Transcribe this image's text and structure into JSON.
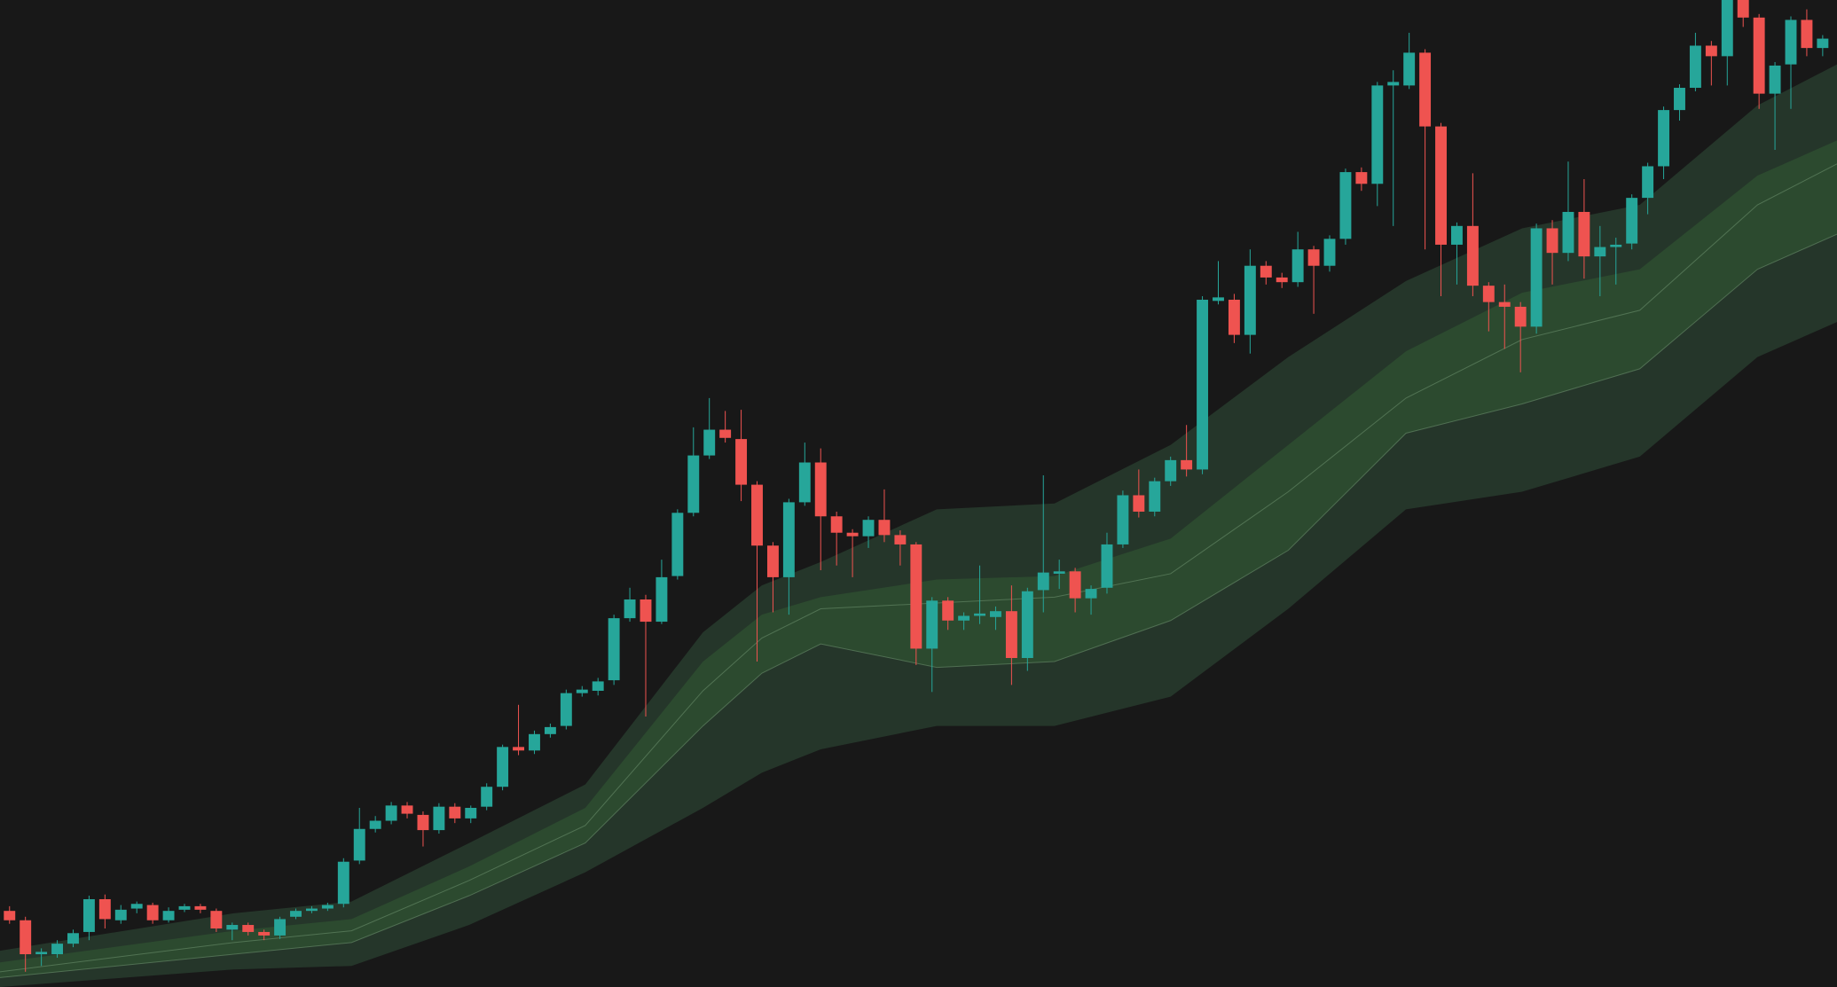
{
  "chart_data": {
    "type": "candlestick",
    "up_color": "#26a69a",
    "down_color": "#ef5350",
    "xlim": [
      -0.6,
      114.9
    ],
    "ylim": [
      0,
      843
    ],
    "x": [
      0,
      1,
      2,
      3,
      4,
      5,
      6,
      7,
      8,
      9,
      10,
      11,
      12,
      13,
      14,
      15,
      16,
      17,
      18,
      19,
      20,
      21,
      22,
      23,
      24,
      25,
      26,
      27,
      28,
      29,
      30,
      31,
      32,
      33,
      34,
      35,
      36,
      37,
      38,
      39,
      40,
      41,
      42,
      43,
      44,
      45,
      46,
      47,
      48,
      49,
      50,
      51,
      52,
      53,
      54,
      55,
      56,
      57,
      58,
      59,
      60,
      61,
      62,
      63,
      64,
      65,
      66,
      67,
      68,
      69,
      70,
      71,
      72,
      73,
      74,
      75,
      76,
      77,
      78,
      79,
      80,
      81,
      82,
      83,
      84,
      85,
      86,
      87,
      88,
      89,
      90,
      91,
      92,
      93,
      94,
      95,
      96,
      97,
      98,
      99,
      100,
      101,
      102,
      103,
      104,
      105,
      106,
      107,
      108,
      109,
      110,
      111,
      112,
      113,
      114
    ],
    "open": [
      65,
      57,
      28,
      28,
      37,
      47,
      75,
      57,
      67,
      70,
      57,
      66,
      69,
      65,
      49,
      53,
      47,
      44,
      60,
      65,
      67,
      71,
      108,
      135,
      142,
      155,
      147,
      134,
      154,
      144,
      154,
      171,
      205,
      202,
      216,
      223,
      251,
      253,
      262,
      315,
      331,
      312,
      351,
      405,
      454,
      476,
      468,
      429,
      377,
      350,
      414,
      448,
      402,
      388,
      385,
      399,
      386,
      378,
      289,
      330,
      313,
      317,
      316,
      321,
      281,
      339,
      353,
      355,
      332,
      341,
      378,
      420,
      406,
      432,
      450,
      442,
      586,
      587,
      557,
      616,
      606,
      602,
      630,
      616,
      639,
      696,
      686,
      770,
      770,
      798,
      735,
      634,
      650,
      599,
      585,
      581,
      564,
      648,
      627,
      662,
      624,
      632,
      635,
      674,
      701,
      749,
      768,
      804,
      795,
      843,
      828,
      763,
      788,
      826,
      802
    ],
    "high": [
      69,
      60,
      33,
      40,
      49,
      78,
      79,
      70,
      73,
      72,
      68,
      71,
      71,
      67,
      55,
      55,
      49,
      60,
      67,
      69,
      72,
      110,
      153,
      146,
      158,
      158,
      150,
      157,
      157,
      155,
      174,
      207,
      241,
      219,
      225,
      254,
      257,
      264,
      318,
      341,
      335,
      365,
      408,
      478,
      503,
      492,
      493,
      432,
      380,
      417,
      465,
      460,
      406,
      391,
      402,
      425,
      390,
      380,
      333,
      333,
      320,
      360,
      325,
      343,
      341,
      437,
      365,
      358,
      343,
      388,
      424,
      442,
      435,
      453,
      480,
      590,
      620,
      592,
      630,
      620,
      610,
      645,
      633,
      642,
      699,
      700,
      773,
      783,
      815,
      801,
      738,
      653,
      695,
      602,
      600,
      585,
      652,
      655,
      705,
      690,
      650,
      640,
      677,
      704,
      752,
      771,
      815,
      808,
      843,
      843,
      831,
      790,
      829,
      835,
      813
    ],
    "low": [
      54,
      13,
      18,
      25,
      34,
      40,
      50,
      54,
      63,
      54,
      55,
      64,
      63,
      47,
      40,
      44,
      40,
      41,
      58,
      63,
      65,
      68,
      105,
      132,
      139,
      144,
      120,
      131,
      140,
      140,
      151,
      168,
      198,
      199,
      213,
      220,
      248,
      249,
      258,
      312,
      231,
      310,
      348,
      402,
      451,
      465,
      415,
      278,
      320,
      318,
      411,
      356,
      360,
      350,
      375,
      380,
      360,
      275,
      252,
      305,
      305,
      310,
      305,
      258,
      270,
      320,
      340,
      320,
      318,
      336,
      375,
      401,
      402,
      428,
      436,
      438,
      583,
      550,
      541,
      600,
      597,
      598,
      575,
      611,
      634,
      680,
      667,
      650,
      767,
      630,
      590,
      600,
      590,
      560,
      545,
      525,
      558,
      600,
      620,
      605,
      590,
      600,
      630,
      660,
      690,
      740,
      765,
      770,
      770,
      820,
      750,
      715,
      750,
      795,
      795
    ],
    "close": [
      57,
      28,
      30,
      37,
      46,
      75,
      58,
      66,
      71,
      57,
      65,
      69,
      66,
      50,
      53,
      47,
      44,
      58,
      65,
      67,
      70,
      107,
      135,
      142,
      155,
      148,
      134,
      154,
      144,
      153,
      171,
      205,
      202,
      216,
      222,
      251,
      254,
      261,
      315,
      331,
      312,
      350,
      405,
      454,
      476,
      469,
      429,
      377,
      350,
      414,
      448,
      402,
      388,
      385,
      399,
      386,
      378,
      289,
      330,
      313,
      317,
      319,
      321,
      281,
      338,
      354,
      355,
      332,
      340,
      378,
      420,
      406,
      432,
      450,
      442,
      587,
      589,
      557,
      616,
      606,
      602,
      630,
      616,
      639,
      696,
      686,
      770,
      773,
      798,
      735,
      634,
      650,
      599,
      585,
      581,
      564,
      648,
      627,
      662,
      624,
      632,
      634,
      674,
      701,
      749,
      768,
      804,
      795,
      843,
      828,
      763,
      787,
      826,
      802,
      810
    ],
    "bands": {
      "x": [
        -0.6,
        14.1,
        21.5,
        28.9,
        36.2,
        43.6,
        47.3,
        51,
        58.3,
        65.7,
        73,
        80.4,
        87.8,
        95.1,
        102.5,
        109.9,
        114.9
      ],
      "upper_outer": [
        31,
        63,
        73,
        123,
        173,
        303,
        343,
        363,
        408,
        413,
        463,
        538,
        603,
        648,
        668,
        753,
        788
      ],
      "upper_inner": [
        21,
        48,
        58,
        103,
        153,
        278,
        318,
        333,
        348,
        351,
        383,
        463,
        543,
        593,
        613,
        693,
        723
      ],
      "mid": [
        13,
        38,
        48,
        91,
        138,
        253,
        298,
        323,
        328,
        333,
        353,
        423,
        503,
        553,
        578,
        668,
        703
      ],
      "lower_inner": [
        8,
        28,
        38,
        78,
        123,
        223,
        268,
        293,
        273,
        278,
        313,
        373,
        473,
        498,
        528,
        613,
        643
      ],
      "lower_outer": [
        0,
        15,
        18,
        53,
        98,
        153,
        183,
        203,
        223,
        223,
        248,
        323,
        408,
        423,
        453,
        538,
        568
      ],
      "outer_color": "#25362a",
      "inner_color": "#2c4a2f",
      "line_color": "#6b8f6c"
    }
  }
}
